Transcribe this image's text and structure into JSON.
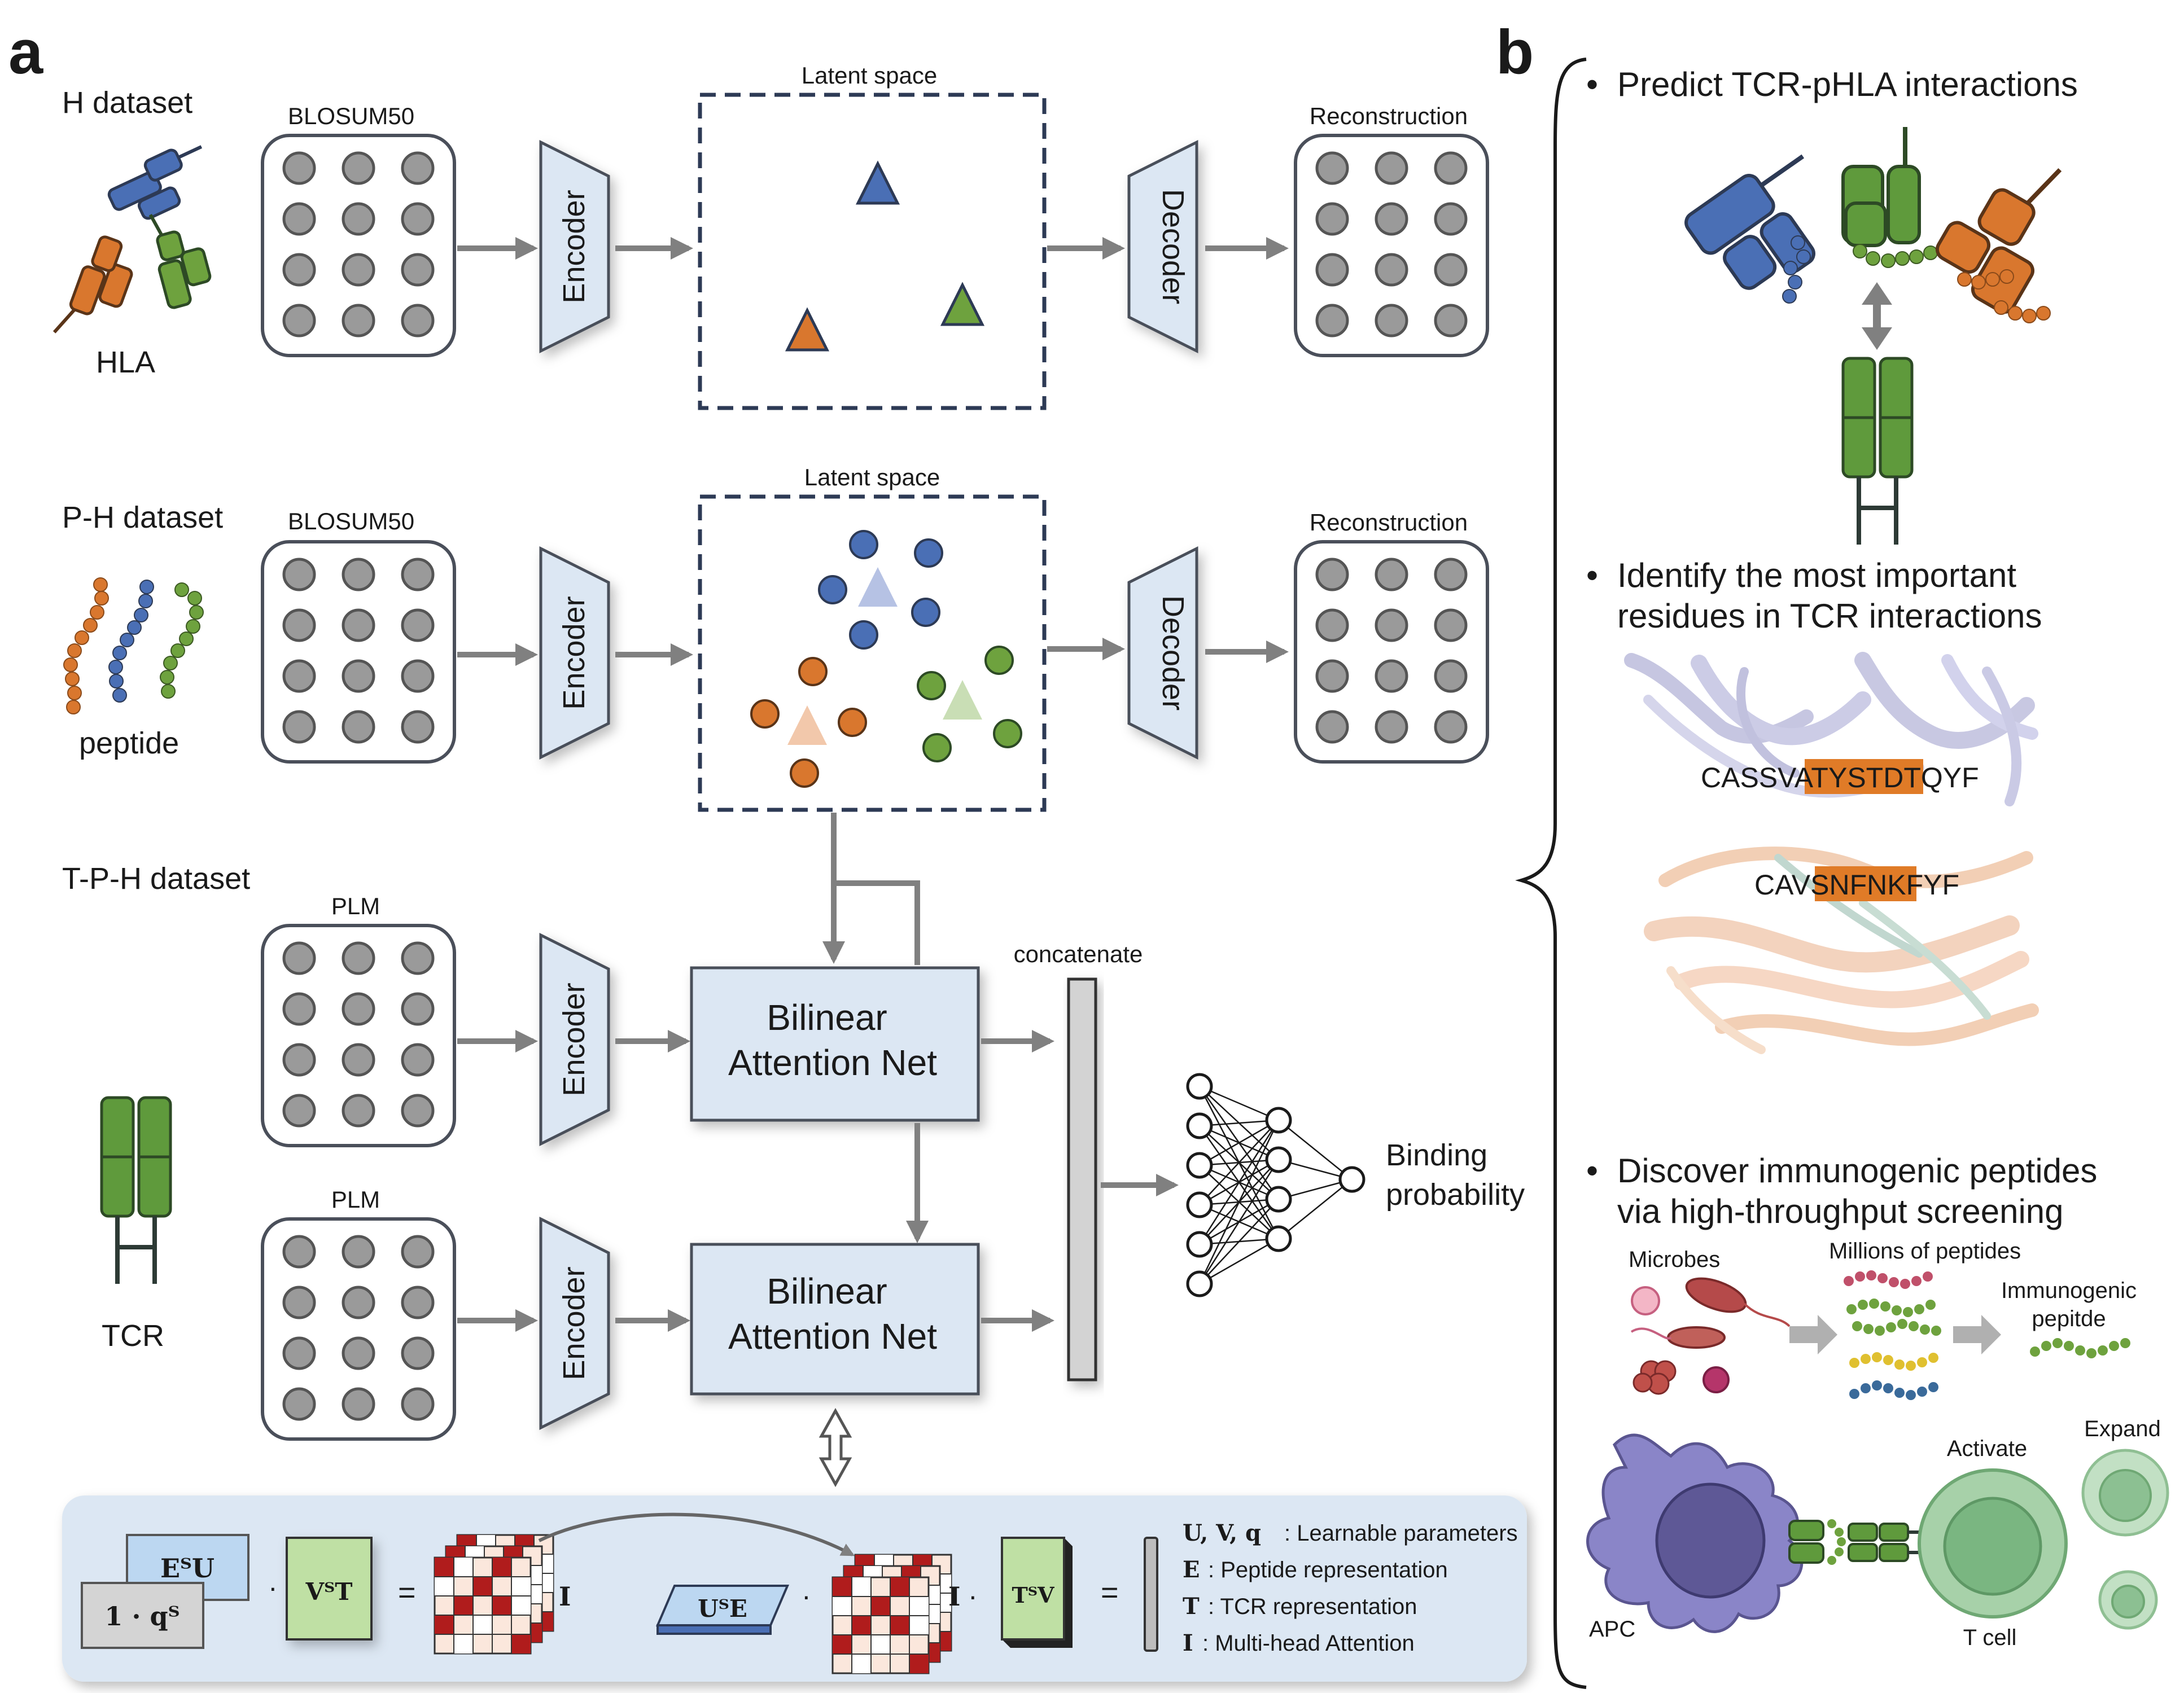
{
  "panel_a": {
    "label": "a",
    "rows": {
      "h": {
        "dataset": "H dataset",
        "entity": "HLA",
        "matrix": "BLOSUM50",
        "encoder": "Encoder",
        "latent": "Latent space",
        "decoder": "Decoder",
        "reconstruction": "Reconstruction"
      },
      "ph": {
        "dataset": "P-H dataset",
        "entity": "peptide",
        "matrix": "BLOSUM50",
        "encoder": "Encoder",
        "latent": "Latent space",
        "decoder": "Decoder",
        "reconstruction": "Reconstruction"
      },
      "tph": {
        "dataset": "T-P-H dataset",
        "entity": "TCR",
        "matrix1": "PLM",
        "matrix2": "PLM",
        "encoder1": "Encoder",
        "encoder2": "Encoder",
        "ban1_line1": "Bilinear",
        "ban1_line2": "Attention Net",
        "ban2_line1": "Bilinear",
        "ban2_line2": "Attention Net",
        "concat": "concatenate",
        "output_line1": "Binding",
        "output_line2": "probability"
      }
    },
    "formula": {
      "etu": "EᵀU",
      "oneq": "1 · qᵀ",
      "dot": "·",
      "vtt": "VᵀT",
      "equals": "=",
      "I": "I",
      "ute": "UᵀE",
      "ttv": "TᵀV",
      "legend": [
        {
          "sym": "U, V, q",
          "desc": ": Learnable parameters"
        },
        {
          "sym": "E",
          "desc": ": Peptide representation"
        },
        {
          "sym": "T",
          "desc": ": TCR representation"
        },
        {
          "sym": "I",
          "desc": ": Multi-head Attention"
        }
      ]
    }
  },
  "panel_b": {
    "label": "b",
    "bullets": [
      {
        "line1": "Predict TCR-pHLA interactions"
      },
      {
        "line1": "Identify the most important",
        "line2": "residues in TCR interactions"
      },
      {
        "line1": "Discover immunogenic peptides",
        "line2": "via high-throughput screening"
      }
    ],
    "cdr3b": {
      "pre": "CASSV",
      "hl": "ATYSTD",
      "post": "TQYF"
    },
    "cdr3a": {
      "pre": "CAV",
      "hl": "SNFNK",
      "post": "FYF"
    },
    "screen": {
      "microbes": "Microbes",
      "millions": "Millions of peptides",
      "immuno1": "Immunogenic",
      "immuno2": "pepitde"
    },
    "cells": {
      "apc": "APC",
      "tcell": "T cell",
      "activate": "Activate",
      "expand": "Expand"
    }
  },
  "colors": {
    "blue": "#4a6fb5",
    "orange": "#d9772e",
    "green": "#6ea23e",
    "box_fill": "#dce7f3",
    "grey_arrow": "#808080",
    "dark_navy": "#2d3a55",
    "attn_red": "#b01c1c",
    "tcr_green": "#5f9a3c"
  }
}
